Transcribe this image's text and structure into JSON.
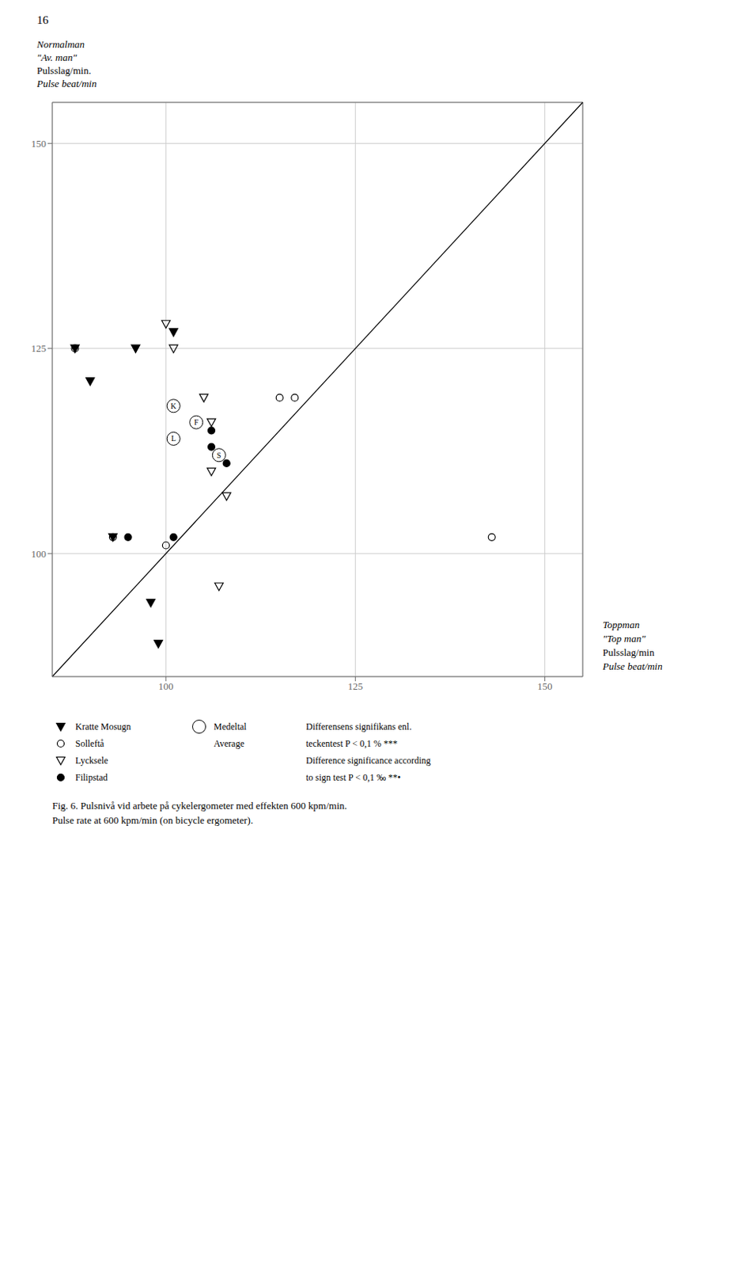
{
  "chart_data": {
    "type": "scatter",
    "title": "Fig. 6.  Pulsnivå vid arbete på cykelergometer med effekten 600 kpm/min.",
    "subtitle": "Pulse rate at 600 kpm/min (on bicycle ergometer).",
    "ylabel": [
      "Normalman",
      "\"Av. man\"",
      "Pulsslag/min.",
      "Pulse beat/min"
    ],
    "xlabel": [
      "Toppman",
      "\"Top man\"",
      "Pulsslag/min",
      "Pulse beat/min"
    ],
    "xlim": [
      85,
      155
    ],
    "ylim": [
      85,
      155
    ],
    "xticks": [
      100,
      125,
      150
    ],
    "yticks": [
      100,
      125,
      150
    ],
    "grid": true,
    "series": [
      {
        "name": "Kratte Mosugn",
        "marker": "triangle_down_filled",
        "color": "#000000",
        "x": [
          88,
          90,
          93,
          96,
          98,
          99,
          101
        ],
        "values": [
          125,
          121,
          102,
          125,
          94,
          89,
          127
        ]
      },
      {
        "name": "Solleftå",
        "marker": "circle_open",
        "color": "#000000",
        "x": [
          88,
          93,
          100,
          115,
          117,
          143
        ],
        "values": [
          125,
          102,
          101,
          119,
          119,
          102
        ]
      },
      {
        "name": "Lycksele",
        "marker": "triangle_down_open",
        "color": "#000000",
        "x": [
          100,
          101,
          105,
          106,
          106,
          107,
          108
        ],
        "values": [
          128,
          125,
          119,
          116,
          110,
          96,
          107
        ]
      },
      {
        "name": "Filipstad",
        "marker": "circle_filled",
        "color": "#000000",
        "x": [
          95,
          101,
          104,
          106,
          106,
          107,
          108
        ],
        "values": [
          102,
          102,
          116,
          115,
          113,
          112,
          111
        ]
      },
      {
        "name": "Medeltal\nAverage",
        "marker": "circled_letter",
        "color": "#000000",
        "x": [
          101,
          101,
          104,
          107
        ],
        "values": [
          118,
          114,
          116,
          112
        ],
        "value_labels": [
          "K",
          "L",
          "F",
          "S"
        ]
      }
    ],
    "annotations": [
      {
        "text": "16"
      },
      {
        "text": [
          "Differensens signifikans enl.",
          "teckentest  P < 0,1 %  ***",
          "Difference significance according",
          "to sign test  P < 0,1 ‰  **•"
        ]
      },
      {
        "x": [
          85,
          155
        ],
        "y": [
          85,
          155
        ]
      }
    ]
  }
}
